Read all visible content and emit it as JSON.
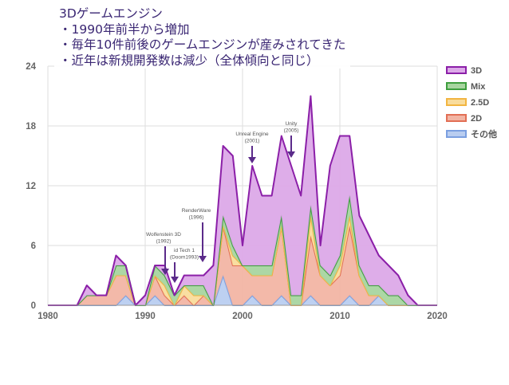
{
  "slide": {
    "title": "3Dゲームエンジン",
    "bullets": [
      "・1990年前半から増加",
      "・毎年10件前後のゲームエンジンが産みされてきた",
      "・近年は新規開発数は減少（全体傾向と同じ）"
    ]
  },
  "chart_data": {
    "type": "area",
    "stacked": true,
    "title": "",
    "xlabel": "",
    "ylabel": "",
    "x": [
      1980,
      1981,
      1982,
      1983,
      1984,
      1985,
      1986,
      1987,
      1988,
      1989,
      1990,
      1991,
      1992,
      1993,
      1994,
      1995,
      1996,
      1997,
      1998,
      1999,
      2000,
      2001,
      2002,
      2003,
      2004,
      2005,
      2006,
      2007,
      2008,
      2009,
      2010,
      2011,
      2012,
      2013,
      2014,
      2015,
      2016,
      2017,
      2018,
      2019,
      2020
    ],
    "xlim": [
      1980,
      2020
    ],
    "ylim": [
      0,
      24
    ],
    "xticks": [
      "1980",
      "1990",
      "2000",
      "2010",
      "2020"
    ],
    "yticks": [
      "0",
      "6",
      "12",
      "18",
      "24"
    ],
    "grid": true,
    "legend_position": "right",
    "series": [
      {
        "name": "その他",
        "color": "#7b9fe0",
        "fill": "#b9cdf0",
        "values": [
          0,
          0,
          0,
          0,
          0,
          0,
          0,
          0,
          1,
          0,
          0,
          1,
          0,
          0,
          0,
          0,
          0,
          0,
          3,
          0,
          0,
          1,
          0,
          0,
          1,
          0,
          0,
          1,
          0,
          0,
          0,
          1,
          0,
          0,
          1,
          0,
          0,
          0,
          0,
          0,
          0
        ]
      },
      {
        "name": "2D",
        "color": "#e26f55",
        "fill": "#f2b5a4",
        "values": [
          0,
          0,
          0,
          0,
          1,
          1,
          1,
          3,
          2,
          0,
          0,
          2,
          1,
          0,
          1,
          0,
          1,
          0,
          5,
          4,
          4,
          2,
          3,
          3,
          7,
          0,
          0,
          6,
          3,
          2,
          3,
          7,
          3,
          1,
          0,
          0,
          0,
          0,
          0,
          0,
          0
        ]
      },
      {
        "name": "2.5D",
        "color": "#f2b541",
        "fill": "#f9dc9c",
        "values": [
          0,
          0,
          0,
          0,
          0,
          0,
          0,
          0,
          0,
          0,
          0,
          0,
          1,
          0,
          1,
          1,
          0,
          0,
          0,
          1,
          0,
          0,
          0,
          0,
          0,
          0,
          0,
          2,
          0,
          0,
          1,
          1,
          0,
          0,
          0,
          0,
          0,
          0,
          0,
          0,
          0
        ]
      },
      {
        "name": "Mix",
        "color": "#3e9e3e",
        "fill": "#a8d5a0",
        "values": [
          0,
          0,
          0,
          0,
          0,
          0,
          0,
          1,
          1,
          0,
          0,
          1,
          1,
          1,
          0,
          1,
          1,
          0,
          1,
          1,
          0,
          1,
          1,
          1,
          1,
          1,
          1,
          1,
          1,
          1,
          1,
          2,
          1,
          1,
          1,
          1,
          1,
          0,
          0,
          0,
          0
        ]
      },
      {
        "name": "3D",
        "color": "#8b1fa8",
        "fill": "#dca9e8",
        "values": [
          0,
          0,
          0,
          0,
          1,
          0,
          0,
          1,
          0,
          0,
          1,
          0,
          1,
          0,
          1,
          1,
          1,
          4,
          7,
          9,
          2,
          10,
          7,
          7,
          8,
          13,
          10,
          11,
          2,
          11,
          12,
          6,
          5,
          5,
          3,
          3,
          2,
          1,
          0,
          0,
          0
        ]
      }
    ],
    "annotations": [
      {
        "text": "Wolfenstein 3D (1992)",
        "x": 1992
      },
      {
        "text": "id Tech 1 (Doom1993)",
        "x": 1993
      },
      {
        "text": "RenderWare (1996)",
        "x": 1996
      },
      {
        "text": "Unreal Engine (2001)",
        "x": 2001
      },
      {
        "text": "Unity (2005)",
        "x": 2005
      }
    ]
  }
}
